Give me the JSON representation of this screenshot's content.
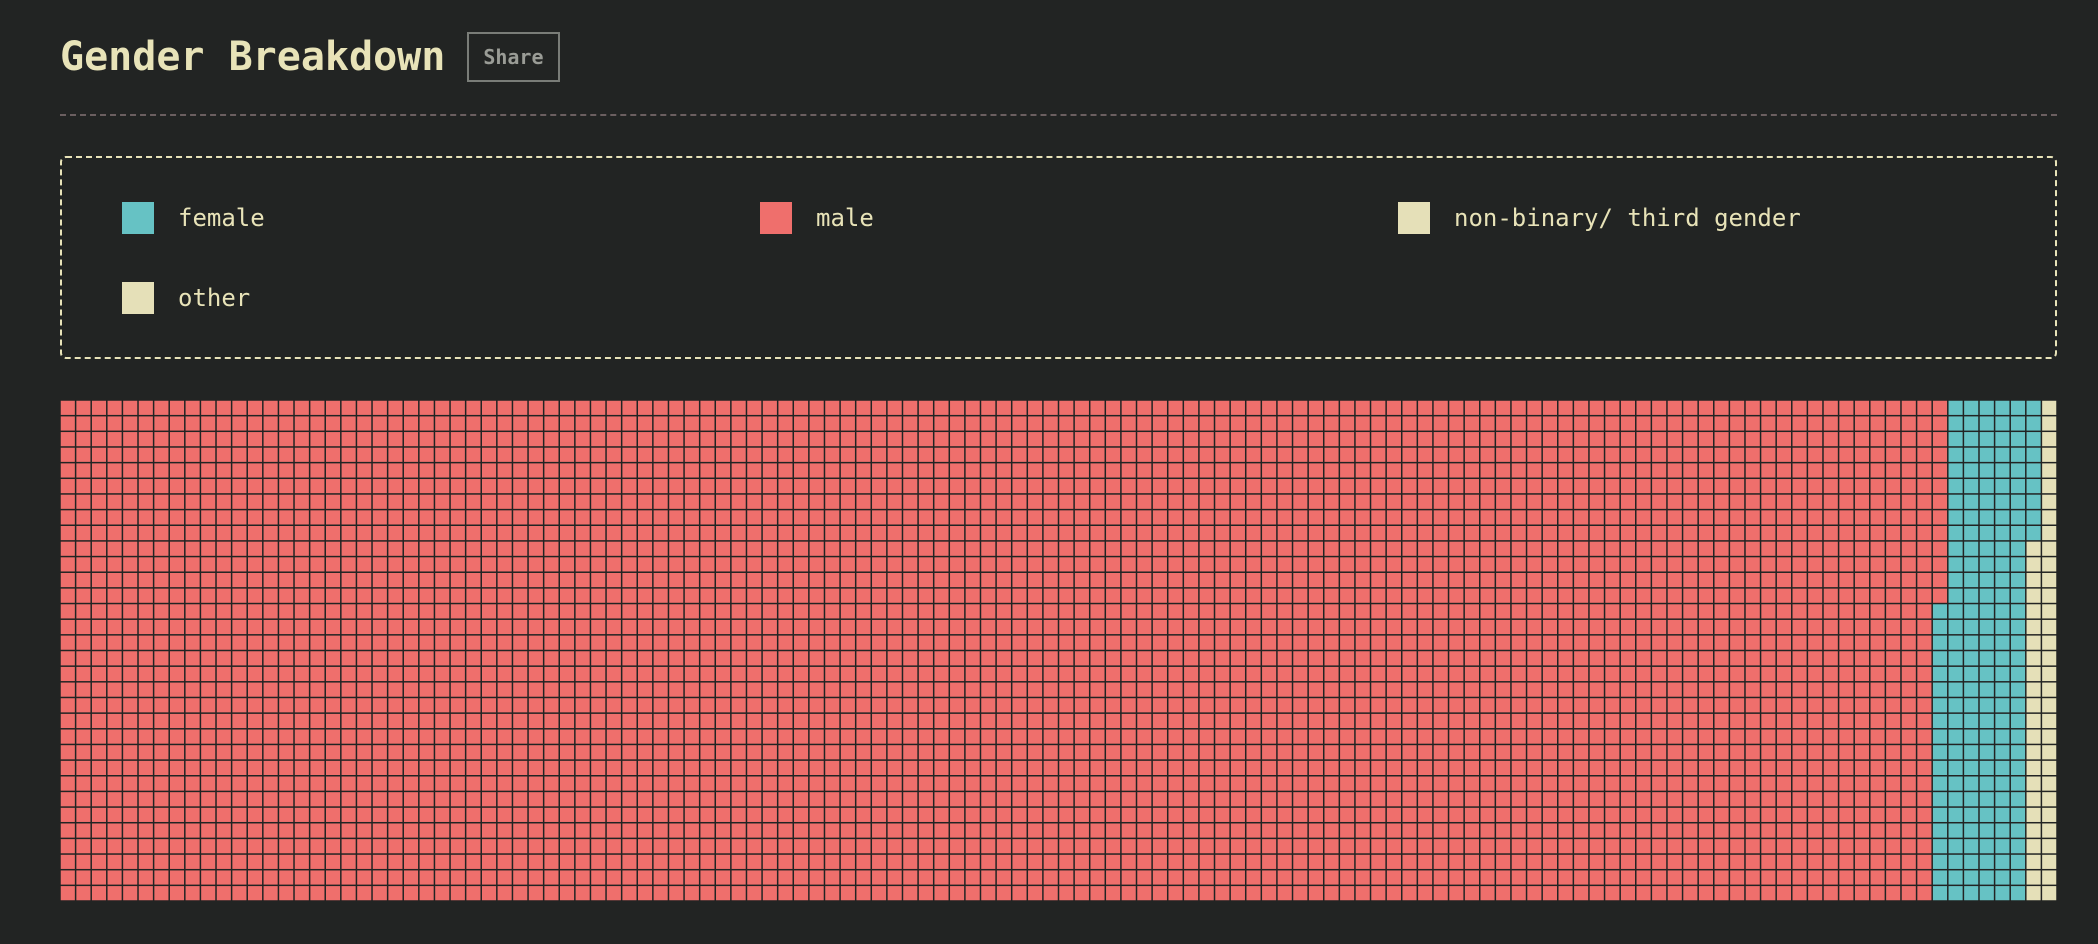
{
  "header": {
    "title": "Gender Breakdown",
    "share_label": "Share"
  },
  "colors": {
    "background": "#222423",
    "text": "#e8e3b8",
    "female": "#66c2c4",
    "male": "#ef6f6c",
    "nonbinary": "#e5e0b8",
    "other": "#e5e0b8"
  },
  "legend": {
    "items": [
      {
        "key": "female",
        "label": "female"
      },
      {
        "key": "male",
        "label": "male"
      },
      {
        "key": "nonbinary",
        "label": "non-binary/ third gender"
      },
      {
        "key": "other",
        "label": "other"
      }
    ]
  },
  "chart_data": {
    "type": "waffle",
    "title": "Gender Breakdown",
    "columns": 128,
    "rows": 32,
    "unit_count": 4096,
    "series": [
      {
        "name": "male",
        "value": 3853
      },
      {
        "name": "female",
        "value": 188
      },
      {
        "name": "non-binary/ third gender",
        "value": 44
      },
      {
        "name": "other",
        "value": 11
      }
    ]
  }
}
